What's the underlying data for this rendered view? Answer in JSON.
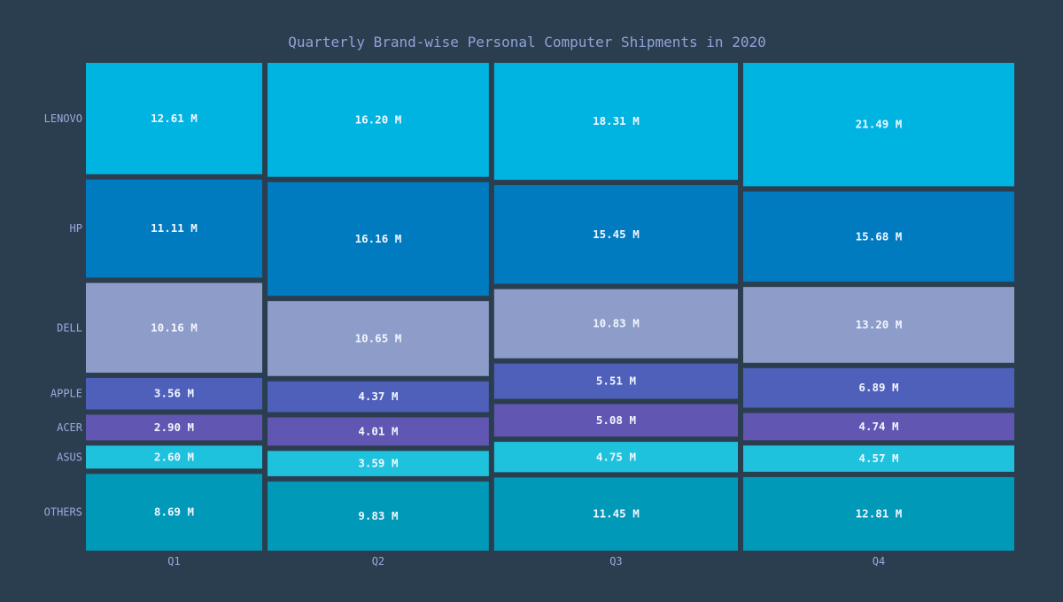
{
  "chart_data": {
    "type": "mosaic",
    "title": "Quarterly Brand-wise Personal Computer Shipments in 2020",
    "unit_suffix": " M",
    "categories": [
      "Q1",
      "Q2",
      "Q3",
      "Q4"
    ],
    "series": [
      {
        "name": "LENOVO",
        "color": "#00b4e2",
        "values": [
          12.61,
          16.2,
          18.31,
          21.49
        ]
      },
      {
        "name": "HP",
        "color": "#007bc0",
        "values": [
          11.11,
          16.16,
          15.45,
          15.68
        ]
      },
      {
        "name": "DELL",
        "color": "#8d9cc8",
        "values": [
          10.16,
          10.65,
          10.83,
          13.2
        ]
      },
      {
        "name": "APPLE",
        "color": "#4f60bb",
        "values": [
          3.56,
          4.37,
          5.51,
          6.89
        ]
      },
      {
        "name": "ACER",
        "color": "#6157b3",
        "values": [
          2.9,
          4.01,
          5.08,
          4.74
        ]
      },
      {
        "name": "ASUS",
        "color": "#1ec2dc",
        "values": [
          2.6,
          3.59,
          4.75,
          4.57
        ]
      },
      {
        "name": "OTHERS",
        "color": "#0199b8",
        "values": [
          8.69,
          9.83,
          11.45,
          12.81
        ]
      }
    ],
    "legend": "none",
    "grid": false
  }
}
